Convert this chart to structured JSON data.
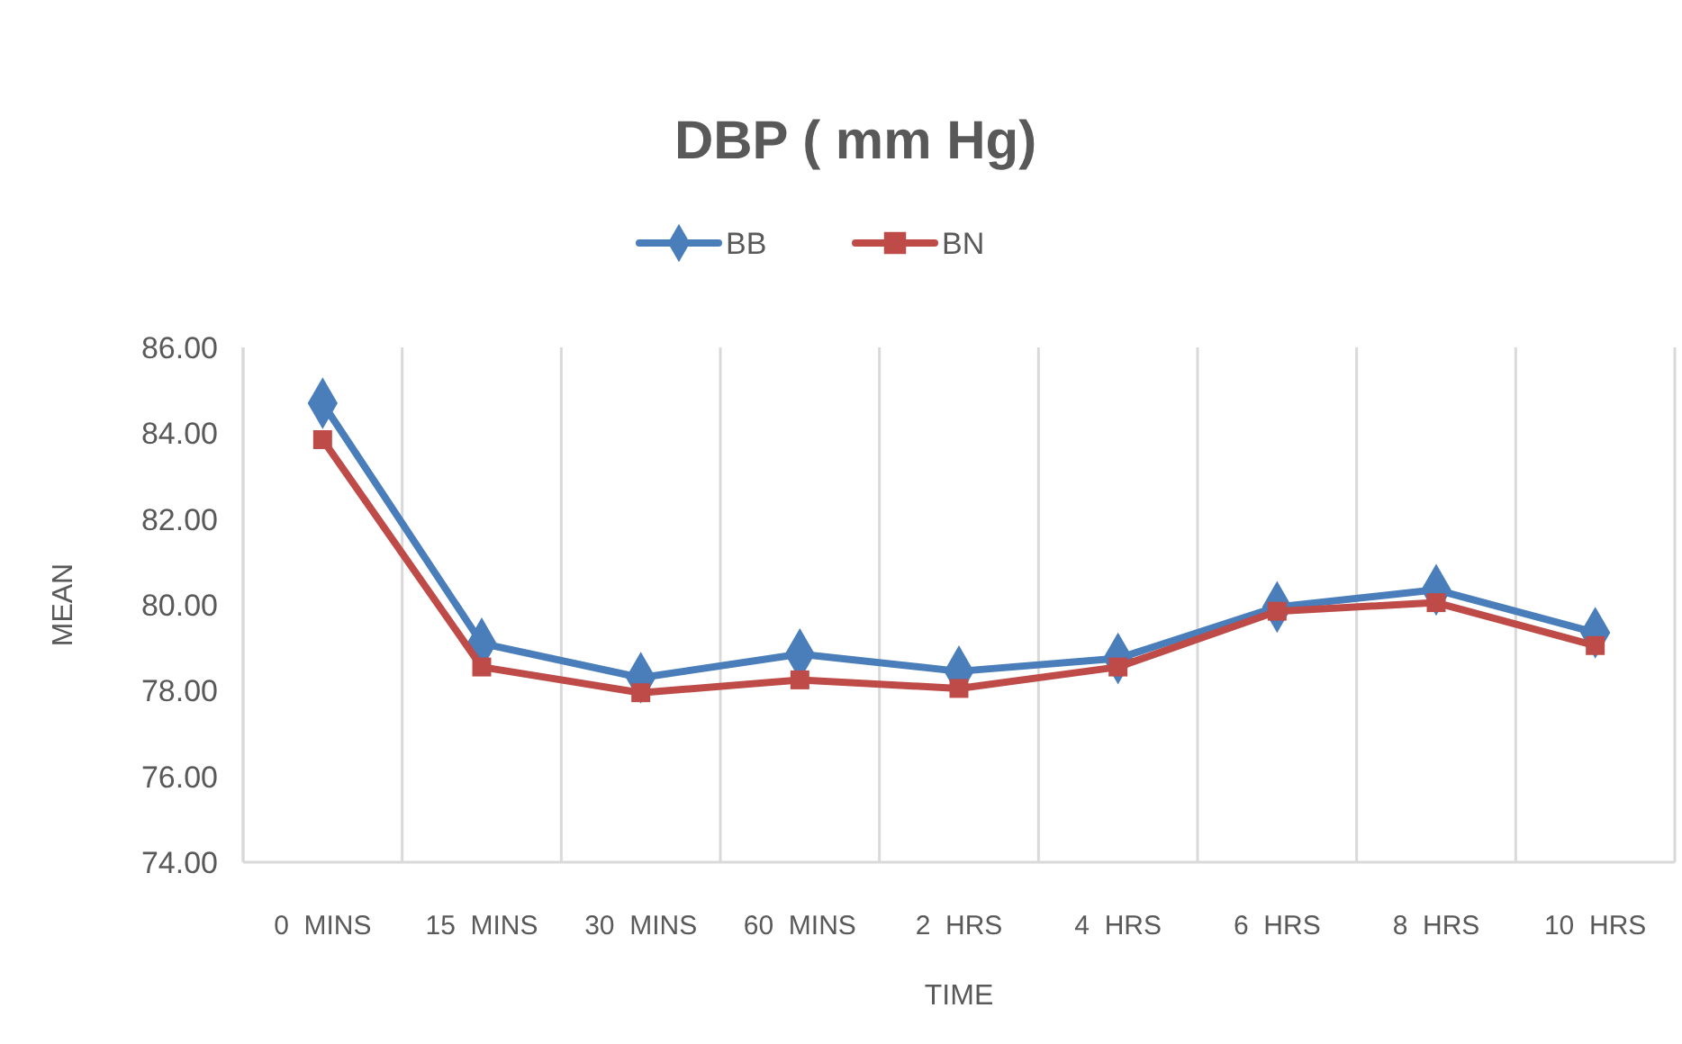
{
  "chart_data": {
    "type": "line",
    "title": "DBP (  mm Hg)",
    "xlabel": "TIME",
    "ylabel": "MEAN",
    "categories": [
      "0  MINS",
      "15  MINS",
      "30  MINS",
      "60  MINS",
      "2  HRS",
      "4  HRS",
      "6  HRS",
      "8  HRS",
      "10  HRS"
    ],
    "series": [
      {
        "name": "BB",
        "color": "#4a7ebb",
        "marker": "diamond",
        "values": [
          84.7,
          79.1,
          78.3,
          78.85,
          78.45,
          78.75,
          79.95,
          80.35,
          79.35
        ]
      },
      {
        "name": "BN",
        "color": "#be4b48",
        "marker": "square",
        "values": [
          83.85,
          78.55,
          77.95,
          78.25,
          78.05,
          78.55,
          79.85,
          80.05,
          79.05
        ]
      }
    ],
    "ylim": [
      74,
      86
    ],
    "yticks": [
      {
        "value": 74,
        "label": "74.00"
      },
      {
        "value": 76,
        "label": "76.00"
      },
      {
        "value": 78,
        "label": "78.00"
      },
      {
        "value": 80,
        "label": "80.00"
      },
      {
        "value": 82,
        "label": "82.00"
      },
      {
        "value": 84,
        "label": "84.00"
      },
      {
        "value": 86,
        "label": "86.00"
      }
    ],
    "grid": "x",
    "legend": "top"
  }
}
